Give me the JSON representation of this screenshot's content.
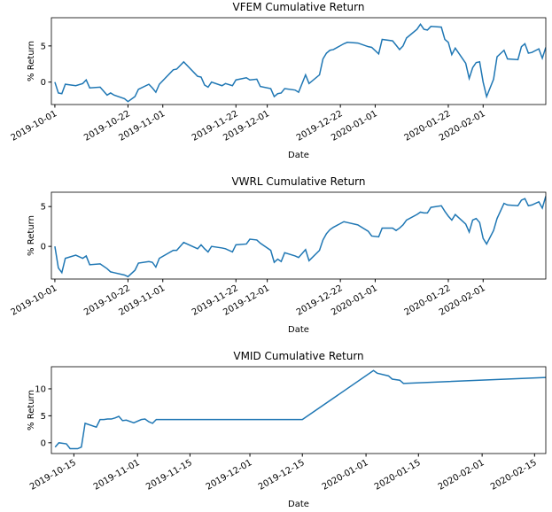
{
  "chart_data": [
    {
      "type": "line",
      "title": "VFEM Cumulative Return",
      "xlabel": "Date",
      "ylabel": "% Return",
      "color": "#1f77b4",
      "x": [
        "2019-10-01",
        "2019-10-02",
        "2019-10-03",
        "2019-10-04",
        "2019-10-07",
        "2019-10-09",
        "2019-10-10",
        "2019-10-11",
        "2019-10-14",
        "2019-10-16",
        "2019-10-17",
        "2019-10-18",
        "2019-10-21",
        "2019-10-22",
        "2019-10-24",
        "2019-10-25",
        "2019-10-28",
        "2019-10-29",
        "2019-10-30",
        "2019-10-31",
        "2019-11-04",
        "2019-11-05",
        "2019-11-07",
        "2019-11-11",
        "2019-11-12",
        "2019-11-13",
        "2019-11-14",
        "2019-11-15",
        "2019-11-18",
        "2019-11-19",
        "2019-11-21",
        "2019-11-22",
        "2019-11-25",
        "2019-11-26",
        "2019-11-28",
        "2019-11-29",
        "2019-12-02",
        "2019-12-03",
        "2019-12-04",
        "2019-12-05",
        "2019-12-06",
        "2019-12-09",
        "2019-12-10",
        "2019-12-12",
        "2019-12-13",
        "2019-12-16",
        "2019-12-17",
        "2019-12-18",
        "2019-12-19",
        "2019-12-20",
        "2019-12-23",
        "2019-12-24",
        "2019-12-27",
        "2019-12-30",
        "2019-12-31",
        "2020-01-02",
        "2020-01-03",
        "2020-01-06",
        "2020-01-07",
        "2020-01-08",
        "2020-01-09",
        "2020-01-10",
        "2020-01-13",
        "2020-01-14",
        "2020-01-15",
        "2020-01-16",
        "2020-01-17",
        "2020-01-20",
        "2020-01-21",
        "2020-01-22",
        "2020-01-23",
        "2020-01-24",
        "2020-01-27",
        "2020-01-28",
        "2020-01-29",
        "2020-01-30",
        "2020-01-31",
        "2020-02-01",
        "2020-02-02",
        "2020-02-04",
        "2020-02-05",
        "2020-02-07",
        "2020-02-08",
        "2020-02-11",
        "2020-02-12",
        "2020-02-13",
        "2020-02-14",
        "2020-02-15",
        "2020-02-17",
        "2020-02-18",
        "2020-02-19"
      ],
      "values": [
        0,
        -1.5,
        -1.6,
        -0.3,
        -0.5,
        -0.2,
        0.3,
        -0.8,
        -0.7,
        -1.8,
        -1.5,
        -1.8,
        -2.3,
        -2.7,
        -2.0,
        -1.0,
        -0.3,
        -0.8,
        -1.4,
        -0.3,
        1.7,
        1.8,
        2.8,
        0.8,
        0.7,
        -0.4,
        -0.7,
        0.0,
        -0.5,
        -0.2,
        -0.5,
        0.3,
        0.6,
        0.3,
        0.4,
        -0.6,
        -0.9,
        -2.0,
        -1.6,
        -1.5,
        -0.9,
        -1.1,
        -1.4,
        1.0,
        -0.2,
        1.0,
        3.2,
        4.0,
        4.4,
        4.5,
        5.3,
        5.5,
        5.4,
        4.9,
        4.8,
        3.9,
        5.9,
        5.7,
        5.1,
        4.5,
        5.0,
        6.1,
        7.3,
        8.0,
        7.3,
        7.2,
        7.7,
        7.6,
        5.9,
        5.5,
        3.8,
        4.7,
        2.6,
        0.5,
        2.0,
        2.7,
        2.8,
        0.0,
        -2.0,
        0.4,
        3.5,
        4.4,
        3.2,
        3.1,
        4.9,
        5.3,
        4.0,
        4.1,
        4.6,
        3.3,
        4.8
      ],
      "xlim": [
        "2019-09-30",
        "2020-02-19"
      ],
      "xticks": [
        "2019-10-01",
        "2019-10-22",
        "2019-11-01",
        "2019-11-22",
        "2019-12-01",
        "2019-12-22",
        "2020-01-01",
        "2020-01-22",
        "2020-02-01"
      ],
      "ylim": [
        -3.1,
        8.9
      ],
      "yticks": [
        0,
        5
      ]
    },
    {
      "type": "line",
      "title": "VWRL Cumulative Return",
      "xlabel": "Date",
      "ylabel": "% Return",
      "color": "#1f77b4",
      "x": [
        "2019-10-01",
        "2019-10-02",
        "2019-10-03",
        "2019-10-04",
        "2019-10-07",
        "2019-10-09",
        "2019-10-10",
        "2019-10-11",
        "2019-10-14",
        "2019-10-16",
        "2019-10-17",
        "2019-10-18",
        "2019-10-21",
        "2019-10-22",
        "2019-10-24",
        "2019-10-25",
        "2019-10-28",
        "2019-10-29",
        "2019-10-30",
        "2019-10-31",
        "2019-11-04",
        "2019-11-05",
        "2019-11-07",
        "2019-11-11",
        "2019-11-12",
        "2019-11-13",
        "2019-11-14",
        "2019-11-15",
        "2019-11-18",
        "2019-11-19",
        "2019-11-21",
        "2019-11-22",
        "2019-11-25",
        "2019-11-26",
        "2019-11-28",
        "2019-11-29",
        "2019-12-02",
        "2019-12-03",
        "2019-12-04",
        "2019-12-05",
        "2019-12-06",
        "2019-12-09",
        "2019-12-10",
        "2019-12-12",
        "2019-12-13",
        "2019-12-16",
        "2019-12-17",
        "2019-12-18",
        "2019-12-19",
        "2019-12-20",
        "2019-12-23",
        "2019-12-24",
        "2019-12-27",
        "2019-12-30",
        "2019-12-31",
        "2020-01-02",
        "2020-01-03",
        "2020-01-06",
        "2020-01-07",
        "2020-01-08",
        "2020-01-09",
        "2020-01-10",
        "2020-01-13",
        "2020-01-14",
        "2020-01-15",
        "2020-01-16",
        "2020-01-17",
        "2020-01-20",
        "2020-01-21",
        "2020-01-22",
        "2020-01-23",
        "2020-01-24",
        "2020-01-27",
        "2020-01-28",
        "2020-01-29",
        "2020-01-30",
        "2020-01-31",
        "2020-02-01",
        "2020-02-02",
        "2020-02-04",
        "2020-02-05",
        "2020-02-07",
        "2020-02-08",
        "2020-02-11",
        "2020-02-12",
        "2020-02-13",
        "2020-02-14",
        "2020-02-15",
        "2020-02-17",
        "2020-02-18",
        "2020-02-19"
      ],
      "values": [
        0,
        -2.7,
        -3.3,
        -1.5,
        -1.1,
        -1.5,
        -1.2,
        -2.3,
        -2.2,
        -2.8,
        -3.2,
        -3.3,
        -3.6,
        -3.8,
        -3.0,
        -2.1,
        -1.9,
        -2.0,
        -2.6,
        -1.5,
        -0.5,
        -0.5,
        0.5,
        -0.3,
        0.2,
        -0.3,
        -0.7,
        0.0,
        -0.2,
        -0.3,
        -0.7,
        0.2,
        0.3,
        0.9,
        0.8,
        0.4,
        -0.5,
        -2.0,
        -1.6,
        -1.9,
        -0.8,
        -1.2,
        -1.4,
        -0.4,
        -1.8,
        -0.5,
        0.8,
        1.6,
        2.1,
        2.4,
        3.1,
        3.0,
        2.7,
        1.9,
        1.3,
        1.2,
        2.3,
        2.3,
        2.0,
        2.3,
        2.7,
        3.3,
        4.0,
        4.3,
        4.2,
        4.2,
        4.9,
        5.1,
        4.4,
        3.8,
        3.3,
        4.0,
        2.8,
        1.8,
        3.3,
        3.5,
        3.0,
        1.0,
        0.3,
        2.0,
        3.5,
        5.4,
        5.2,
        5.1,
        5.8,
        6.0,
        5.1,
        5.2,
        5.6,
        4.8,
        6.3
      ],
      "xlim": [
        "2019-09-30",
        "2020-02-19"
      ],
      "xticks": [
        "2019-10-01",
        "2019-10-22",
        "2019-11-01",
        "2019-11-22",
        "2019-12-01",
        "2019-12-22",
        "2020-01-01",
        "2020-01-22",
        "2020-02-01"
      ],
      "ylim": [
        -4.1,
        6.8
      ],
      "yticks": [
        0,
        5
      ]
    },
    {
      "type": "line",
      "title": "VMID Cumulative Return",
      "xlabel": "Date",
      "ylabel": "% Return",
      "color": "#1f77b4",
      "x": [
        "2019-10-10",
        "2019-10-11",
        "2019-10-13",
        "2019-10-14",
        "2019-10-16",
        "2019-10-17",
        "2019-10-18",
        "2019-10-21",
        "2019-10-22",
        "2019-10-23",
        "2019-10-24",
        "2019-10-25",
        "2019-10-26",
        "2019-10-27",
        "2019-10-28",
        "2019-10-29",
        "2019-10-31",
        "2019-11-02",
        "2019-11-03",
        "2019-11-04",
        "2019-11-05",
        "2019-11-06",
        "2019-12-15",
        "2020-01-03",
        "2020-01-04",
        "2020-01-07",
        "2020-01-08",
        "2020-01-10",
        "2020-01-11",
        "2020-02-18"
      ],
      "values": [
        -0.8,
        0.0,
        -0.2,
        -1.1,
        -1.1,
        -0.8,
        3.6,
        2.9,
        4.3,
        4.3,
        4.4,
        4.4,
        4.6,
        4.9,
        4.1,
        4.2,
        3.7,
        4.3,
        4.4,
        3.9,
        3.6,
        4.3,
        4.3,
        13.4,
        12.9,
        12.4,
        11.8,
        11.6,
        11.0,
        12.1
      ],
      "xlim": [
        "2019-10-09",
        "2020-02-18"
      ],
      "xticks": [
        "2019-10-15",
        "2019-11-01",
        "2019-11-15",
        "2019-12-01",
        "2019-12-15",
        "2020-01-01",
        "2020-01-15",
        "2020-02-01",
        "2020-02-15"
      ],
      "ylim": [
        -2.0,
        14.1
      ],
      "yticks": [
        0,
        5,
        10
      ]
    }
  ]
}
